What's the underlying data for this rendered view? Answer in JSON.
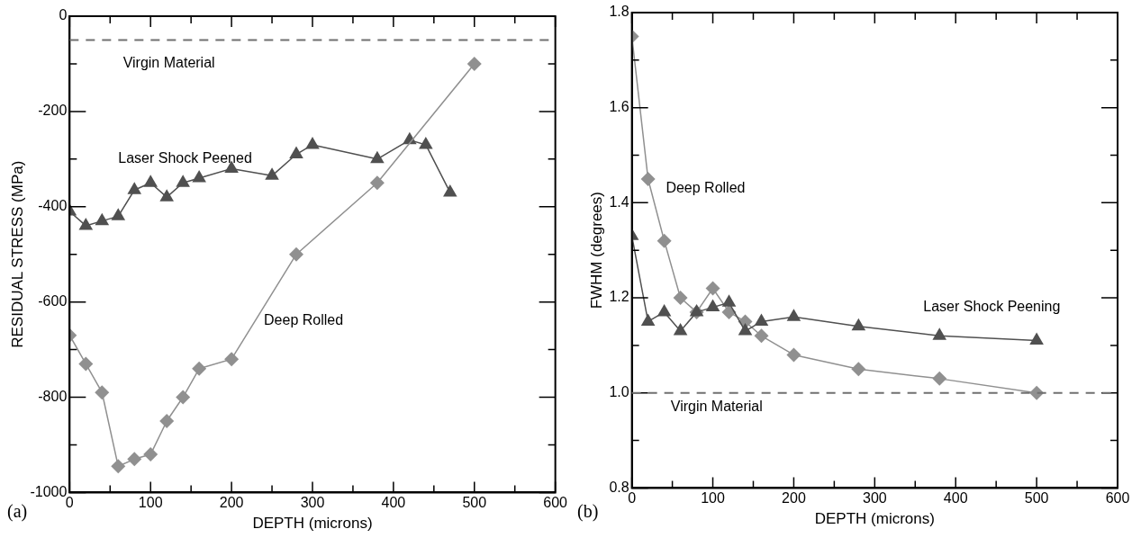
{
  "chart_data": [
    {
      "type": "line",
      "xlabel": "DEPTH (microns)",
      "ylabel": "RESIDUAL STRESS (MPa)",
      "xlim": [
        0,
        600
      ],
      "ylim": [
        -1000,
        0
      ],
      "xticks": [
        0,
        {
          "value": 50,
          "label": null
        },
        100,
        {
          "value": 150,
          "label": null
        },
        200,
        {
          "value": 250,
          "label": null
        },
        300,
        {
          "value": 350,
          "label": null
        },
        400,
        {
          "value": 450,
          "label": null
        },
        500,
        {
          "value": 550,
          "label": null
        },
        600
      ],
      "yticks": [
        -1000,
        {
          "value": -900,
          "label": null
        },
        -800,
        {
          "value": -700,
          "label": null
        },
        -600,
        {
          "value": -500,
          "label": null
        },
        -400,
        {
          "value": -300,
          "label": null
        },
        -200,
        {
          "value": -100,
          "label": null
        },
        0
      ],
      "grid": false,
      "legend": false,
      "line_style": "solid",
      "series": [
        {
          "name": "Laser Shock Peened",
          "color": "#505050",
          "marker": "triangle",
          "x": [
            0,
            20,
            40,
            60,
            80,
            100,
            120,
            140,
            160,
            200,
            250,
            280,
            300,
            380,
            420,
            440,
            470
          ],
          "values": [
            -410,
            -440,
            -430,
            -420,
            -365,
            -350,
            -380,
            -350,
            -340,
            -320,
            -335,
            -290,
            -270,
            -300,
            -260,
            -270,
            -370
          ]
        },
        {
          "name": "Deep Rolled",
          "color": "#909090",
          "marker": "diamond",
          "x": [
            0,
            20,
            40,
            60,
            80,
            100,
            120,
            140,
            160,
            200,
            280,
            380,
            500
          ],
          "values": [
            -670,
            -730,
            -790,
            -945,
            -930,
            -920,
            -850,
            -800,
            -740,
            -720,
            -500,
            -350,
            -100
          ]
        }
      ],
      "ref_lines": [
        {
          "axis": "y",
          "value": -50,
          "label": "Virgin Material",
          "color": "#707070",
          "line_style": "dashed"
        }
      ],
      "annotations": [
        "(a)"
      ]
    },
    {
      "type": "line",
      "xlabel": "DEPTH (microns)",
      "ylabel": "FWHM (degrees)",
      "xlim": [
        0,
        600
      ],
      "ylim": [
        0.8,
        1.8
      ],
      "xticks": [
        0,
        {
          "value": 50,
          "label": null
        },
        100,
        {
          "value": 150,
          "label": null
        },
        200,
        {
          "value": 250,
          "label": null
        },
        300,
        {
          "value": 350,
          "label": null
        },
        400,
        {
          "value": 450,
          "label": null
        },
        500,
        {
          "value": 550,
          "label": null
        },
        600
      ],
      "yticks": [
        {
          "value": 0.8,
          "label": "0.8"
        },
        {
          "value": 0.9,
          "label": null
        },
        {
          "value": 1.0,
          "label": "1.0"
        },
        {
          "value": 1.1,
          "label": null
        },
        {
          "value": 1.2,
          "label": "1.2"
        },
        {
          "value": 1.3,
          "label": null
        },
        {
          "value": 1.4,
          "label": "1.4"
        },
        {
          "value": 1.5,
          "label": null
        },
        {
          "value": 1.6,
          "label": "1.6"
        },
        {
          "value": 1.7,
          "label": null
        },
        {
          "value": 1.8,
          "label": "1.8"
        }
      ],
      "grid": false,
      "legend": false,
      "line_style": "solid",
      "series": [
        {
          "name": "Deep Rolled",
          "color": "#909090",
          "marker": "diamond",
          "x": [
            0,
            20,
            40,
            60,
            80,
            100,
            120,
            140,
            160,
            200,
            280,
            380,
            500
          ],
          "values": [
            1.75,
            1.45,
            1.32,
            1.2,
            1.17,
            1.22,
            1.17,
            1.15,
            1.12,
            1.08,
            1.05,
            1.03,
            1.0
          ]
        },
        {
          "name": "Laser Shock Peening",
          "color": "#505050",
          "marker": "triangle",
          "x": [
            0,
            20,
            40,
            60,
            80,
            100,
            120,
            140,
            160,
            200,
            280,
            380,
            500
          ],
          "values": [
            1.33,
            1.15,
            1.17,
            1.13,
            1.17,
            1.18,
            1.19,
            1.13,
            1.15,
            1.16,
            1.14,
            1.12,
            1.11
          ]
        }
      ],
      "ref_lines": [
        {
          "axis": "y",
          "value": 1.0,
          "label": "Virgin Material",
          "color": "#707070",
          "line_style": "dashed"
        }
      ],
      "annotations": [
        "(b)"
      ]
    }
  ]
}
